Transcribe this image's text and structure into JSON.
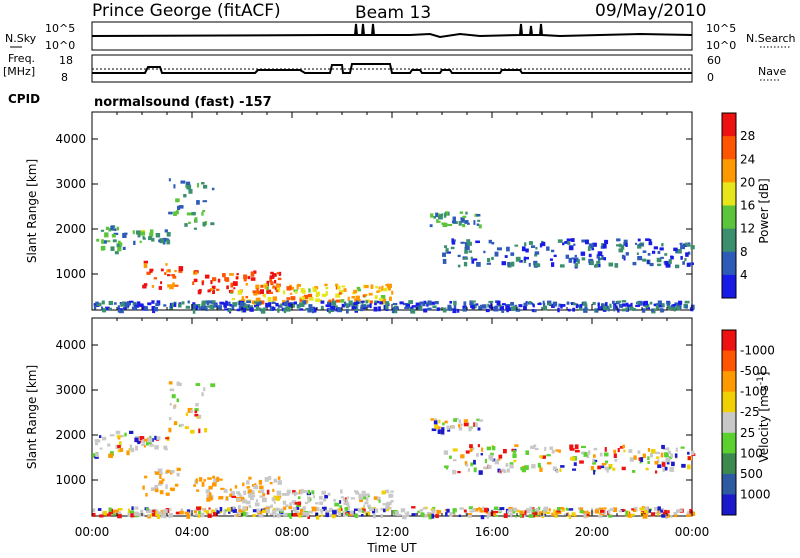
{
  "header": {
    "station": "Prince George (fitACF)",
    "beam": "Beam 13",
    "date": "09/May/2010"
  },
  "top_panels": {
    "nsky_label": "N.Sky",
    "nsky_ticks": [
      "10^5",
      "10^0"
    ],
    "nsearch_label": "N.Search",
    "nsearch_ticks": [
      "10^5",
      "10^0"
    ],
    "freq_label_1": "Freq.",
    "freq_label_2": "[MHz]",
    "freq_ticks": [
      "18",
      "8"
    ],
    "nave_label": "Nave",
    "nave_ticks": [
      "60",
      "0"
    ],
    "cpid_label": "CPID",
    "cpid_value": "normalsound (fast) -157"
  },
  "chart_data": [
    {
      "type": "heatmap",
      "panel": "power",
      "ylabel": "Slant Range [km]",
      "yticks": [
        "1000",
        "2000",
        "3000",
        "4000"
      ],
      "ylim": [
        200,
        4600
      ],
      "colorbar_label": "Power [dB]",
      "colorbar_ticks": [
        "4",
        "8",
        "12",
        "16",
        "20",
        "24",
        "28"
      ],
      "colorbar_colors": [
        "#1a1ae6",
        "#2e5ab8",
        "#3b8f6e",
        "#5cc43a",
        "#e6e61a",
        "#ff9900",
        "#ff5500",
        "#ee1111"
      ],
      "xlim_hours": [
        0,
        24
      ]
    },
    {
      "type": "heatmap",
      "panel": "velocity",
      "ylabel": "Slant Range [km]",
      "yticks": [
        "1000",
        "2000",
        "3000",
        "4000"
      ],
      "ylim": [
        200,
        4600
      ],
      "colorbar_label": "Velocity [m s",
      "colorbar_label_sup": "-1",
      "colorbar_label_end": "]",
      "colorbar_ticks": [
        "1000",
        "500",
        "100",
        "25",
        "-25",
        "-100",
        "-500",
        "-1000"
      ],
      "colorbar_colors": [
        "#1a1acc",
        "#2d5aa0",
        "#3c8a50",
        "#5cd02e",
        "#c8c8c8",
        "#f0d000",
        "#ff9900",
        "#ff5500",
        "#ee1111"
      ],
      "xlim_hours": [
        0,
        24
      ]
    }
  ],
  "x_axis": {
    "ticks": [
      "00:00",
      "04:00",
      "08:00",
      "12:00",
      "16:00",
      "20:00",
      "00:00"
    ],
    "label": "Time UT"
  }
}
